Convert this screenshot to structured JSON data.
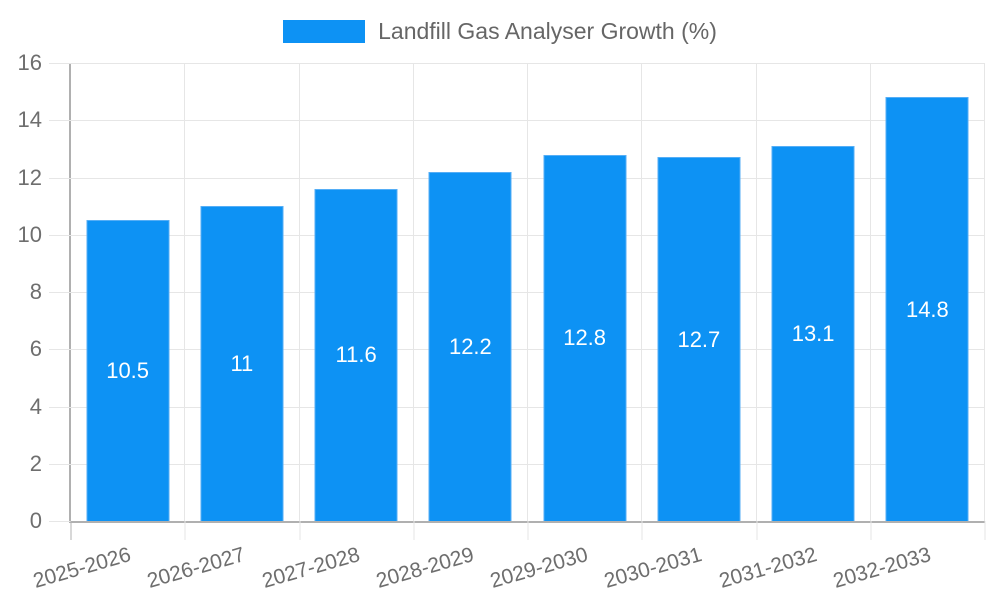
{
  "chart_data": {
    "type": "bar",
    "title": "",
    "legend": {
      "label": "Landfill Gas Analyser Growth (%)",
      "position": "top-center"
    },
    "categories": [
      "2025-2026",
      "2026-2027",
      "2027-2028",
      "2028-2029",
      "2029-2030",
      "2030-2031",
      "2031-2032",
      "2032-2033"
    ],
    "values": [
      10.5,
      11,
      11.6,
      12.2,
      12.8,
      12.7,
      13.1,
      14.8
    ],
    "value_labels": [
      "10.5",
      "11",
      "11.6",
      "12.2",
      "12.8",
      "12.7",
      "13.1",
      "14.8"
    ],
    "xlabel": "",
    "ylabel": "",
    "ylim": [
      0,
      16
    ],
    "yticks": [
      0,
      2,
      4,
      6,
      8,
      10,
      12,
      14,
      16
    ],
    "grid": true,
    "x_label_rotation_deg": -16,
    "value_label_position": "center",
    "colors": {
      "bar": "#0d92f4",
      "bar_edge": "#55aef6",
      "value_label": "#ffffff",
      "grid": "#e6e6e6",
      "axis": "#b0b0b0",
      "axis_label": "#6e6e6e",
      "legend_text": "#666666",
      "background": "#ffffff"
    }
  }
}
